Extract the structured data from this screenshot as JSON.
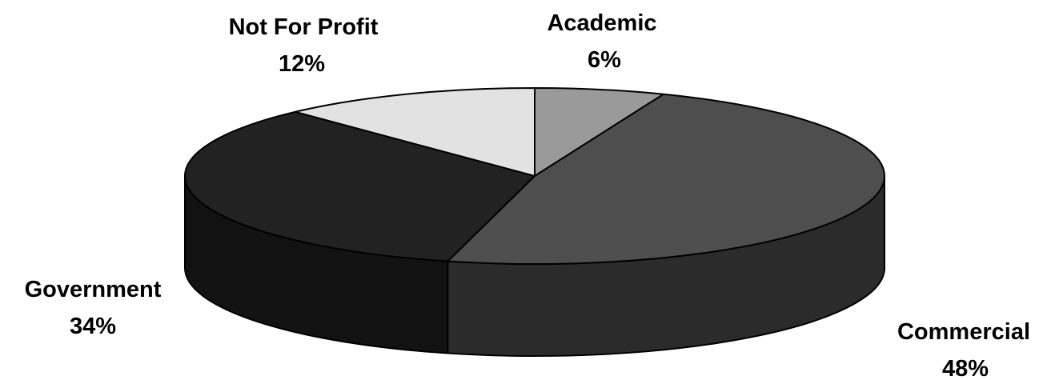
{
  "chart_data": {
    "type": "pie",
    "style": "3d",
    "title": "",
    "slices": [
      {
        "label": "Academic",
        "value": 6,
        "value_label": "6%",
        "color": "#9a9a9a"
      },
      {
        "label": "Commercial",
        "value": 48,
        "value_label": "48%",
        "color": "#4e4e4e"
      },
      {
        "label": "Government",
        "value": 34,
        "value_label": "34%",
        "color": "#222222"
      },
      {
        "label": "Not For Profit",
        "value": 12,
        "value_label": "12%",
        "color": "#e2e2e2"
      }
    ],
    "side_colors": {
      "Academic": "#6e6e6e",
      "Commercial": "#2b2b2b",
      "Government": "#121212",
      "Not For Profit": "#b0b0b0"
    },
    "outline_color": "#000000",
    "background": "#ffffff"
  }
}
